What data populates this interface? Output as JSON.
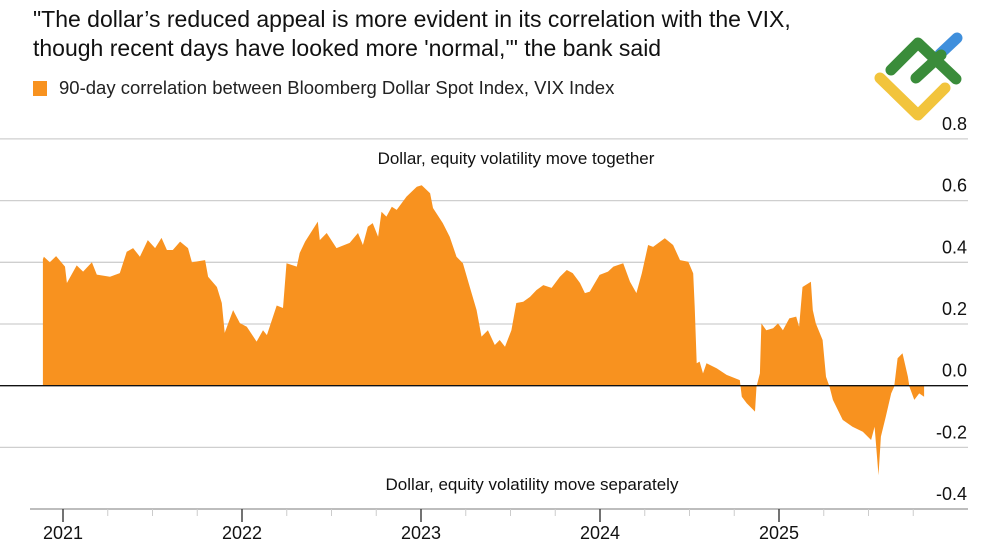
{
  "title_lines": [
    "\"The dollar’s reduced appeal is more evident in its correlation with the VIX,",
    "though recent days have looked more 'normal,'\" the bank said"
  ],
  "colors": {
    "series": "#F8921F",
    "grid": "#cfcfcf",
    "zero_line": "#111111",
    "logo_green": "#3a8c3a",
    "logo_yellow": "#f2c43c",
    "logo_blue": "#3f8fdc"
  },
  "logo": {
    "icon": "green-yellow-blue-chevron-logo"
  },
  "chart_data": {
    "type": "area",
    "legend": {
      "label": "90-day correlation between Bloomberg Dollar Spot Index, VIX Index",
      "placement": "top-left"
    },
    "annotations": {
      "top": "Dollar, equity volatility move together",
      "bottom": "Dollar, equity volatility move separately"
    },
    "y_axis": {
      "range": [
        -0.4,
        0.8
      ],
      "ticks": [
        "0.8",
        "0.6",
        "0.4",
        "0.2",
        "0.0",
        "-0.2",
        "-0.4"
      ],
      "side": "right"
    },
    "x_axis": {
      "ticks": [
        "2021",
        "2022",
        "2023",
        "2024",
        "2025"
      ],
      "range": [
        "2020-11-20",
        "2025-11-10"
      ]
    },
    "grid": true,
    "series": [
      {
        "name": "90-day correlation between Bloomberg Dollar Spot Index, VIX Index",
        "points": [
          [
            "2020-11-21",
            0.41
          ],
          [
            "2020-11-23",
            0.418
          ],
          [
            "2020-12-05",
            0.4
          ],
          [
            "2020-12-18",
            0.42
          ],
          [
            "2021-01-05",
            0.386
          ],
          [
            "2021-01-09",
            0.333
          ],
          [
            "2021-01-29",
            0.39
          ],
          [
            "2021-02-11",
            0.37
          ],
          [
            "2021-03-01",
            0.4
          ],
          [
            "2021-03-11",
            0.36
          ],
          [
            "2021-04-07",
            0.353
          ],
          [
            "2021-04-27",
            0.365
          ],
          [
            "2021-05-11",
            0.434
          ],
          [
            "2021-05-24",
            0.446
          ],
          [
            "2021-06-07",
            0.418
          ],
          [
            "2021-06-23",
            0.472
          ],
          [
            "2021-07-08",
            0.446
          ],
          [
            "2021-07-21",
            0.479
          ],
          [
            "2021-08-01",
            0.44
          ],
          [
            "2021-08-13",
            0.44
          ],
          [
            "2021-08-28",
            0.467
          ],
          [
            "2021-09-13",
            0.446
          ],
          [
            "2021-09-21",
            0.4
          ],
          [
            "2021-10-18",
            0.407
          ],
          [
            "2021-10-24",
            0.353
          ],
          [
            "2021-11-11",
            0.32
          ],
          [
            "2021-11-21",
            0.268
          ],
          [
            "2021-11-27",
            0.171
          ],
          [
            "2021-12-14",
            0.245
          ],
          [
            "2021-12-28",
            0.203
          ],
          [
            "2022-01-11",
            0.191
          ],
          [
            "2022-01-31",
            0.143
          ],
          [
            "2022-02-13",
            0.18
          ],
          [
            "2022-02-21",
            0.164
          ],
          [
            "2022-03-13",
            0.26
          ],
          [
            "2022-03-26",
            0.252
          ],
          [
            "2022-04-02",
            0.397
          ],
          [
            "2022-04-23",
            0.386
          ],
          [
            "2022-04-29",
            0.43
          ],
          [
            "2022-05-10",
            0.467
          ],
          [
            "2022-06-05",
            0.532
          ],
          [
            "2022-06-09",
            0.472
          ],
          [
            "2022-06-23",
            0.495
          ],
          [
            "2022-07-13",
            0.446
          ],
          [
            "2022-08-09",
            0.463
          ],
          [
            "2022-08-26",
            0.495
          ],
          [
            "2022-09-05",
            0.456
          ],
          [
            "2022-09-15",
            0.515
          ],
          [
            "2022-09-25",
            0.527
          ],
          [
            "2022-10-06",
            0.483
          ],
          [
            "2022-10-13",
            0.564
          ],
          [
            "2022-10-23",
            0.548
          ],
          [
            "2022-11-03",
            0.58
          ],
          [
            "2022-11-13",
            0.57
          ],
          [
            "2022-12-03",
            0.613
          ],
          [
            "2022-12-24",
            0.645
          ],
          [
            "2023-01-03",
            0.65
          ],
          [
            "2023-01-20",
            0.624
          ],
          [
            "2023-01-26",
            0.576
          ],
          [
            "2023-02-15",
            0.527
          ],
          [
            "2023-03-01",
            0.483
          ],
          [
            "2023-03-15",
            0.418
          ],
          [
            "2023-03-28",
            0.397
          ],
          [
            "2023-04-11",
            0.32
          ],
          [
            "2023-04-25",
            0.245
          ],
          [
            "2023-05-05",
            0.159
          ],
          [
            "2023-05-18",
            0.18
          ],
          [
            "2023-06-01",
            0.132
          ],
          [
            "2023-06-11",
            0.148
          ],
          [
            "2023-06-22",
            0.126
          ],
          [
            "2023-07-05",
            0.18
          ],
          [
            "2023-07-15",
            0.268
          ],
          [
            "2023-07-29",
            0.272
          ],
          [
            "2023-08-12",
            0.288
          ],
          [
            "2023-08-25",
            0.31
          ],
          [
            "2023-09-08",
            0.326
          ],
          [
            "2023-09-25",
            0.317
          ],
          [
            "2023-10-12",
            0.353
          ],
          [
            "2023-10-26",
            0.375
          ],
          [
            "2023-11-07",
            0.365
          ],
          [
            "2023-11-22",
            0.333
          ],
          [
            "2023-12-02",
            0.3
          ],
          [
            "2023-12-12",
            0.305
          ],
          [
            "2024-01-01",
            0.359
          ],
          [
            "2024-01-18",
            0.37
          ],
          [
            "2024-01-29",
            0.386
          ],
          [
            "2024-02-18",
            0.397
          ],
          [
            "2024-03-03",
            0.337
          ],
          [
            "2024-03-16",
            0.3
          ],
          [
            "2024-03-27",
            0.364
          ],
          [
            "2024-04-09",
            0.456
          ],
          [
            "2024-04-19",
            0.45
          ],
          [
            "2024-05-13",
            0.478
          ],
          [
            "2024-05-30",
            0.456
          ],
          [
            "2024-06-13",
            0.407
          ],
          [
            "2024-06-30",
            0.402
          ],
          [
            "2024-07-10",
            0.364
          ],
          [
            "2024-07-13",
            0.256
          ],
          [
            "2024-07-17",
            0.073
          ],
          [
            "2024-07-23",
            0.078
          ],
          [
            "2024-07-30",
            0.04
          ],
          [
            "2024-08-06",
            0.073
          ],
          [
            "2024-08-27",
            0.056
          ],
          [
            "2024-09-16",
            0.035
          ],
          [
            "2024-10-13",
            0.018
          ],
          [
            "2024-10-17",
            -0.036
          ],
          [
            "2024-10-27",
            -0.057
          ],
          [
            "2024-11-13",
            -0.084
          ],
          [
            "2024-11-16",
            -0.003
          ],
          [
            "2024-11-23",
            0.04
          ],
          [
            "2024-11-26",
            0.202
          ],
          [
            "2024-12-06",
            0.18
          ],
          [
            "2024-12-20",
            0.186
          ],
          [
            "2024-12-30",
            0.202
          ],
          [
            "2025-01-09",
            0.18
          ],
          [
            "2025-01-22",
            0.218
          ],
          [
            "2025-02-05",
            0.224
          ],
          [
            "2025-02-11",
            0.191
          ],
          [
            "2025-02-18",
            0.32
          ],
          [
            "2025-03-07",
            0.337
          ],
          [
            "2025-03-11",
            0.245
          ],
          [
            "2025-03-17",
            0.202
          ],
          [
            "2025-03-31",
            0.148
          ],
          [
            "2025-04-07",
            0.029
          ],
          [
            "2025-04-14",
            -0.003
          ],
          [
            "2025-04-21",
            -0.046
          ],
          [
            "2025-05-11",
            -0.111
          ],
          [
            "2025-05-31",
            -0.133
          ],
          [
            "2025-06-21",
            -0.149
          ],
          [
            "2025-07-08",
            -0.176
          ],
          [
            "2025-07-15",
            -0.133
          ],
          [
            "2025-07-23",
            -0.29
          ],
          [
            "2025-07-28",
            -0.165
          ],
          [
            "2025-08-07",
            -0.1
          ],
          [
            "2025-08-18",
            -0.025
          ],
          [
            "2025-08-24",
            -0.003
          ],
          [
            "2025-08-31",
            0.089
          ],
          [
            "2025-09-10",
            0.105
          ],
          [
            "2025-09-21",
            0.029
          ],
          [
            "2025-09-24",
            -0.003
          ],
          [
            "2025-10-04",
            -0.046
          ],
          [
            "2025-10-14",
            -0.025
          ],
          [
            "2025-10-24",
            -0.036
          ]
        ]
      }
    ]
  }
}
